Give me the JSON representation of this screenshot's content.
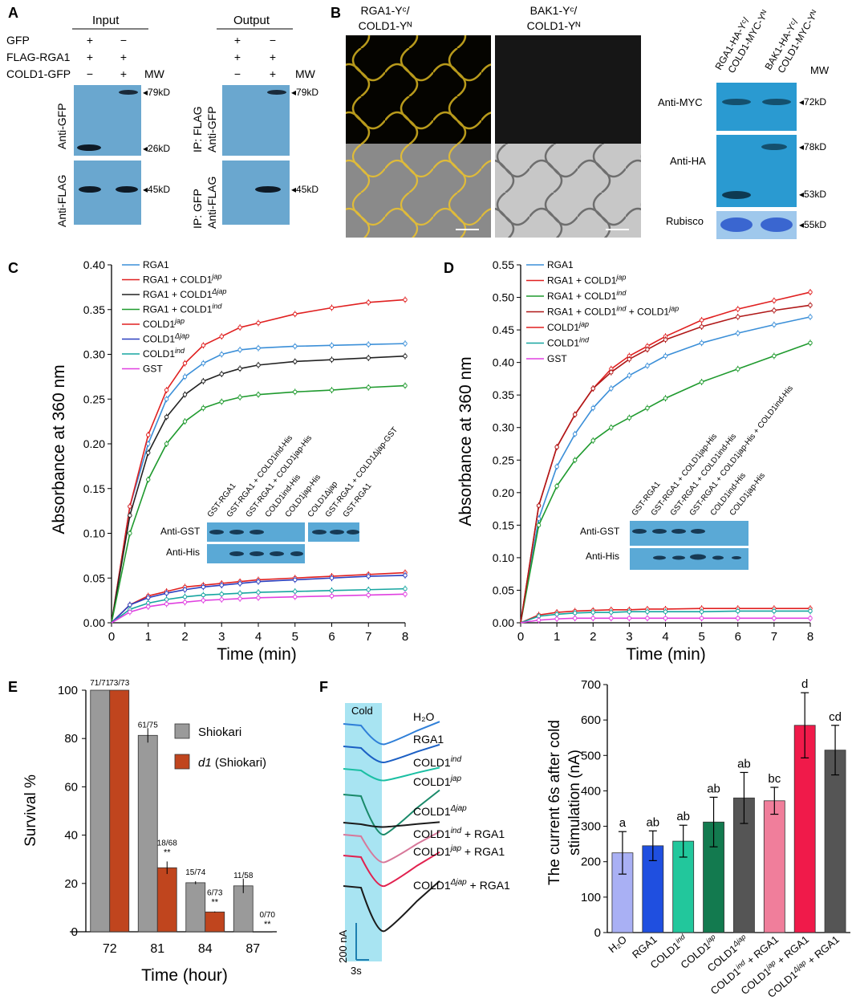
{
  "panelA": {
    "label": "A",
    "input_title": "Input",
    "output_title": "Output",
    "rows": [
      "GFP",
      "FLAG-RGA1",
      "COLD1-GFP"
    ],
    "input_signs": [
      [
        "+",
        "−"
      ],
      [
        "+",
        "+"
      ],
      [
        "−",
        "+"
      ]
    ],
    "output_signs": [
      [
        "+",
        "−"
      ],
      [
        "+",
        "+"
      ],
      [
        "−",
        "+"
      ]
    ],
    "mw": "MW",
    "blot_labels": [
      "Anti-GFP",
      "Anti-FLAG"
    ],
    "ip_labels": [
      [
        "IP: FLAG",
        "Anti-GFP"
      ],
      [
        "IP: GFP",
        "Anti-FLAG"
      ]
    ],
    "markers": [
      "79kD",
      "26kD",
      "45kD",
      "79kD",
      "45kD"
    ]
  },
  "panelB": {
    "label": "B",
    "img1_title": [
      "RGA1-Yᶜ/",
      "COLD1-Yᴺ"
    ],
    "img2_title": [
      "BAK1-Yᶜ/",
      "COLD1-Yᴺ"
    ],
    "lane_labels": [
      "RGA1-HA-Yᶜ/",
      "COLD1-MYC-Yᴺ",
      "BAK1-HA-Yᶜ/",
      "COLD1-MYC-Yᴺ"
    ],
    "mw": "MW",
    "blots": [
      "Anti-MYC",
      "Anti-HA",
      "Rubisco"
    ],
    "markers": [
      "72kD",
      "78kD",
      "53kD",
      "55kD"
    ]
  },
  "panelC": {
    "label": "C",
    "ylabel": "Absorbance at 360 nm",
    "xlabel": "Time (min)",
    "yticks": [
      "0.00",
      "0.05",
      "0.10",
      "0.15",
      "0.20",
      "0.25",
      "0.30",
      "0.35",
      "0.40"
    ],
    "xticks": [
      "0",
      "1",
      "2",
      "3",
      "4",
      "5",
      "6",
      "7",
      "8"
    ],
    "legend": [
      "RGA1",
      "RGA1 + COLD1",
      "RGA1 + COLD1",
      "RGA1 + COLD1",
      "COLD1",
      "COLD1",
      "COLD1",
      "GST"
    ],
    "legend_sup": [
      "",
      "jap",
      "Δjap",
      "ind",
      "jap",
      "Δjap",
      "ind",
      ""
    ],
    "inset_lanes": [
      "GST-RGA1",
      "GST-RGA1 + COLD1ind-His",
      "GST-RGA1 + COLD1jap-His",
      "COLD1ind-His",
      "COLD1jap-His",
      "COLD1Δjap",
      "GST-RGA1 + COLD1Δjap-GST",
      "GST-RGA1"
    ],
    "inset_blots": [
      "Anti-GST",
      "Anti-His"
    ]
  },
  "panelD": {
    "label": "D",
    "ylabel": "Absorbance at 360 nm",
    "xlabel": "Time (min)",
    "yticks": [
      "0.00",
      "0.05",
      "0.10",
      "0.15",
      "0.20",
      "0.25",
      "0.30",
      "0.35",
      "0.40",
      "0.45",
      "0.50",
      "0.55"
    ],
    "xticks": [
      "0",
      "1",
      "2",
      "3",
      "4",
      "5",
      "6",
      "7",
      "8"
    ],
    "legend": [
      "RGA1",
      "RGA1 + COLD1",
      "RGA1 + COLD1",
      "RGA1 + COLD1",
      "COLD1",
      "COLD1",
      "GST"
    ],
    "legend_sup": [
      "",
      "jap",
      "ind",
      "ind",
      "jap",
      "ind",
      ""
    ],
    "legend_extra": [
      "",
      "",
      "",
      " + COLD1",
      "",
      "",
      ""
    ],
    "legend_extra_sup": [
      "",
      "",
      "",
      "jap",
      "",
      "",
      ""
    ],
    "inset_lanes": [
      "GST-RGA1",
      "GST-RGA1 + COLD1jap-His",
      "GST-RGA1 + COLD1ind-His",
      "GST-RGA1 + COLD1jap-His + COLD1ind-His",
      "COLD1ind-His",
      "COLD1jap-His"
    ],
    "inset_blots": [
      "Anti-GST",
      "Anti-His"
    ]
  },
  "panelE": {
    "label": "E",
    "ylabel": "Survival %",
    "xlabel": "Time (hour)",
    "yticks": [
      "0",
      "20",
      "40",
      "60",
      "80",
      "100"
    ],
    "categories": [
      "72",
      "81",
      "84",
      "87"
    ],
    "legend": [
      "Shiokari",
      "d1",
      " (Shiokari)"
    ],
    "counts_shiokari": [
      "71/71",
      "61/75",
      "15/74",
      "11/58"
    ],
    "counts_d1": [
      "73/73",
      "18/68",
      "6/73",
      "0/70"
    ],
    "sig": [
      "**",
      "**",
      "**"
    ]
  },
  "panelF": {
    "label": "F",
    "cold_label": "Cold",
    "traces": [
      "H₂O",
      "RGA1",
      "COLD1",
      "COLD1",
      "COLD1",
      "COLD1",
      "COLD1",
      "COLD1"
    ],
    "trace_sup": [
      "",
      "",
      "ind",
      "jap",
      "Δjap",
      "ind",
      "jap",
      "Δjap"
    ],
    "trace_suffix": [
      "",
      "",
      "",
      "",
      "",
      " + RGA1",
      " + RGA1",
      " + RGA1"
    ],
    "scale_y": "200 nA",
    "scale_x": "3s",
    "ylabel": [
      "The current 6s after cold",
      "stimulation (nA)"
    ],
    "yticks": [
      "0",
      "100",
      "200",
      "300",
      "400",
      "500",
      "600",
      "700"
    ],
    "bar_cats": [
      "H₂O",
      "RGA1",
      "COLD1",
      "COLD1",
      "COLD1",
      "COLD1",
      "COLD1",
      "COLD1"
    ],
    "bar_sup": [
      "",
      "",
      "ind",
      "jap",
      "Δjap",
      "ind",
      "jap",
      "Δjap"
    ],
    "bar_suffix": [
      "",
      "",
      "",
      "",
      "",
      " + RGA1",
      " + RGA1",
      " + RGA1"
    ],
    "letters": [
      "a",
      "ab",
      "ab",
      "ab",
      "ab",
      "bc",
      "d",
      "cd"
    ]
  },
  "colors": {
    "rga1_blue": "#3b8fd8",
    "red": "#e02020",
    "black": "#222222",
    "green": "#1f9a2e",
    "teal": "#16a5a0",
    "darkred": "#b01818",
    "magenta": "#e040e0",
    "navy": "#2b3fbf",
    "gray_bar": "#9a9a9a",
    "rust_bar": "#c0451e",
    "blot": "#5aa9d6"
  },
  "chart_data": [
    {
      "type": "line",
      "title": "C",
      "xlabel": "Time (min)",
      "ylabel": "Absorbance at 360 nm",
      "xlim": [
        0,
        8
      ],
      "ylim": [
        0,
        0.4
      ],
      "x": [
        0,
        0.5,
        1,
        1.5,
        2,
        2.5,
        3,
        3.5,
        4,
        5,
        6,
        7,
        8
      ],
      "series": [
        {
          "name": "RGA1",
          "values": [
            0,
            0.13,
            0.2,
            0.25,
            0.275,
            0.29,
            0.3,
            0.305,
            0.307,
            0.309,
            0.31,
            0.311,
            0.312
          ]
        },
        {
          "name": "RGA1 + COLD1jap",
          "values": [
            0,
            0.13,
            0.21,
            0.26,
            0.29,
            0.31,
            0.32,
            0.33,
            0.335,
            0.345,
            0.352,
            0.358,
            0.361
          ]
        },
        {
          "name": "RGA1 + COLD1Δjap",
          "values": [
            0,
            0.12,
            0.19,
            0.23,
            0.255,
            0.27,
            0.278,
            0.284,
            0.288,
            0.292,
            0.294,
            0.296,
            0.298
          ]
        },
        {
          "name": "RGA1 + COLD1ind",
          "values": [
            0,
            0.1,
            0.16,
            0.2,
            0.225,
            0.24,
            0.247,
            0.252,
            0.255,
            0.258,
            0.26,
            0.263,
            0.265
          ]
        },
        {
          "name": "COLD1jap",
          "values": [
            0,
            0.02,
            0.03,
            0.035,
            0.04,
            0.042,
            0.044,
            0.046,
            0.048,
            0.05,
            0.052,
            0.054,
            0.056
          ]
        },
        {
          "name": "COLD1Δjap",
          "values": [
            0,
            0.02,
            0.028,
            0.033,
            0.037,
            0.04,
            0.042,
            0.044,
            0.046,
            0.048,
            0.05,
            0.052,
            0.053
          ]
        },
        {
          "name": "COLD1ind",
          "values": [
            0,
            0.015,
            0.022,
            0.026,
            0.029,
            0.031,
            0.032,
            0.033,
            0.034,
            0.035,
            0.036,
            0.037,
            0.038
          ]
        },
        {
          "name": "GST",
          "values": [
            0,
            0.012,
            0.018,
            0.021,
            0.023,
            0.025,
            0.026,
            0.027,
            0.028,
            0.029,
            0.03,
            0.031,
            0.032
          ]
        }
      ]
    },
    {
      "type": "line",
      "title": "D",
      "xlabel": "Time (min)",
      "ylabel": "Absorbance at 360 nm",
      "xlim": [
        0,
        8
      ],
      "ylim": [
        0,
        0.55
      ],
      "x": [
        0,
        0.5,
        1,
        1.5,
        2,
        2.5,
        3,
        3.5,
        4,
        5,
        6,
        7,
        8
      ],
      "series": [
        {
          "name": "RGA1",
          "values": [
            0,
            0.16,
            0.24,
            0.29,
            0.33,
            0.36,
            0.38,
            0.395,
            0.41,
            0.43,
            0.445,
            0.458,
            0.47
          ]
        },
        {
          "name": "RGA1 + COLD1jap",
          "values": [
            0,
            0.18,
            0.27,
            0.32,
            0.36,
            0.39,
            0.41,
            0.425,
            0.44,
            0.465,
            0.482,
            0.495,
            0.508
          ]
        },
        {
          "name": "RGA1 + COLD1ind",
          "values": [
            0,
            0.15,
            0.21,
            0.25,
            0.28,
            0.3,
            0.315,
            0.33,
            0.345,
            0.37,
            0.39,
            0.41,
            0.43
          ]
        },
        {
          "name": "RGA1 + COLD1ind + COLD1jap",
          "values": [
            0,
            0.18,
            0.27,
            0.32,
            0.36,
            0.385,
            0.405,
            0.42,
            0.435,
            0.455,
            0.47,
            0.48,
            0.488
          ]
        },
        {
          "name": "COLD1jap",
          "values": [
            0,
            0.012,
            0.016,
            0.018,
            0.019,
            0.02,
            0.02,
            0.021,
            0.021,
            0.022,
            0.022,
            0.022,
            0.022
          ]
        },
        {
          "name": "COLD1ind",
          "values": [
            0,
            0.01,
            0.013,
            0.015,
            0.016,
            0.016,
            0.017,
            0.017,
            0.017,
            0.017,
            0.018,
            0.018,
            0.018
          ]
        },
        {
          "name": "GST",
          "values": [
            0,
            0.004,
            0.006,
            0.007,
            0.007,
            0.007,
            0.007,
            0.007,
            0.007,
            0.007,
            0.007,
            0.007,
            0.007
          ]
        }
      ]
    },
    {
      "type": "bar",
      "title": "E",
      "xlabel": "Time (hour)",
      "ylabel": "Survival %",
      "ylim": [
        0,
        100
      ],
      "categories": [
        "72",
        "81",
        "84",
        "87"
      ],
      "series": [
        {
          "name": "Shiokari",
          "values": [
            100,
            81.3,
            20.3,
            19
          ]
        },
        {
          "name": "d1 (Shiokari)",
          "values": [
            100,
            26.5,
            8.2,
            0
          ]
        }
      ]
    },
    {
      "type": "bar",
      "title": "F",
      "ylabel": "The current 6s after cold stimulation (nA)",
      "ylim": [
        0,
        700
      ],
      "categories": [
        "H2O",
        "RGA1",
        "COLD1ind",
        "COLD1jap",
        "COLD1Δjap",
        "COLD1ind + RGA1",
        "COLD1jap + RGA1",
        "COLD1Δjap + RGA1"
      ],
      "values": [
        225,
        245,
        258,
        312,
        380,
        372,
        585,
        515
      ],
      "errors": [
        60,
        42,
        45,
        70,
        72,
        38,
        92,
        70
      ]
    }
  ]
}
